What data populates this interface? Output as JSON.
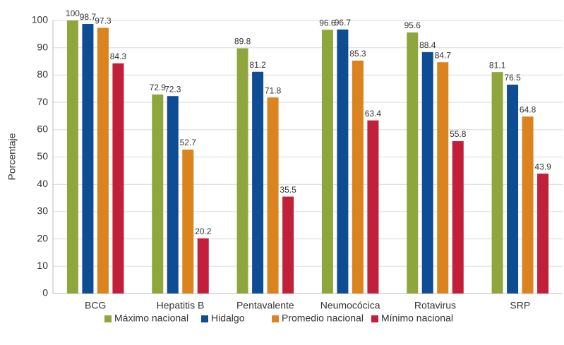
{
  "chart_data": {
    "type": "bar",
    "y_label": "Porcentaje",
    "categories": [
      "BCG",
      "Hepatitis B",
      "Pentavalente",
      "Neumocócica",
      "Rotavirus",
      "SRP"
    ],
    "series": [
      {
        "name": "Máximo nacional",
        "color": "#8fa63c",
        "values": [
          100,
          72.9,
          89.8,
          96.6,
          95.6,
          81.1
        ]
      },
      {
        "name": "Hidalgo",
        "color": "#0e4d93",
        "values": [
          98.7,
          72.3,
          81.2,
          96.7,
          88.4,
          76.5
        ]
      },
      {
        "name": "Promedio nacional",
        "color": "#da831f",
        "values": [
          97.3,
          52.7,
          71.8,
          85.3,
          84.7,
          64.8
        ]
      },
      {
        "name": "Mínimo nacional",
        "color": "#c21f3a",
        "values": [
          84.3,
          20.2,
          35.5,
          63.4,
          55.8,
          43.9
        ]
      }
    ],
    "ylim": [
      0,
      100
    ],
    "yticks": [
      0,
      10,
      20,
      30,
      40,
      50,
      60,
      70,
      80,
      90,
      100
    ],
    "grid": true,
    "legend": "bottom"
  }
}
